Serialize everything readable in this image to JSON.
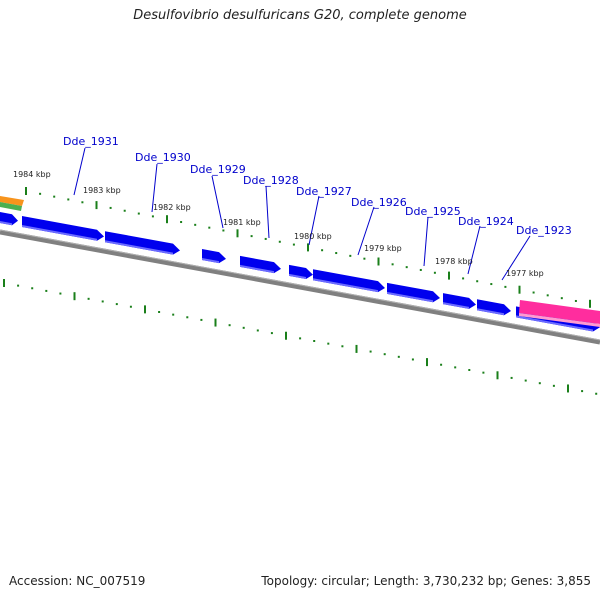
{
  "title": "Desulfovibrio desulfuricans G20, complete genome",
  "footer": {
    "accession": "Accession: NC_007519",
    "summary": "Topology: circular; Length: 3,730,232 bp; Genes: 3,855"
  },
  "colors": {
    "gene": "#0000ee",
    "gene_highlight": "#ff2d9e",
    "rna_orange": "#f7941d",
    "rna_green": "#4caf50",
    "backbone": "#808080",
    "ticks": "#1a7f1a",
    "gene_label": "#0000cc"
  },
  "tick_labels": [
    "1984 kbp",
    "1983 kbp",
    "1982 kbp",
    "1981 kbp",
    "1980 kbp",
    "1979 kbp",
    "1978 kbp",
    "1977 kbp"
  ],
  "gene_labels": [
    "Dde_1931",
    "Dde_1930",
    "Dde_1929",
    "Dde_1928",
    "Dde_1927",
    "Dde_1926",
    "Dde_1925",
    "Dde_1924",
    "Dde_1923"
  ]
}
